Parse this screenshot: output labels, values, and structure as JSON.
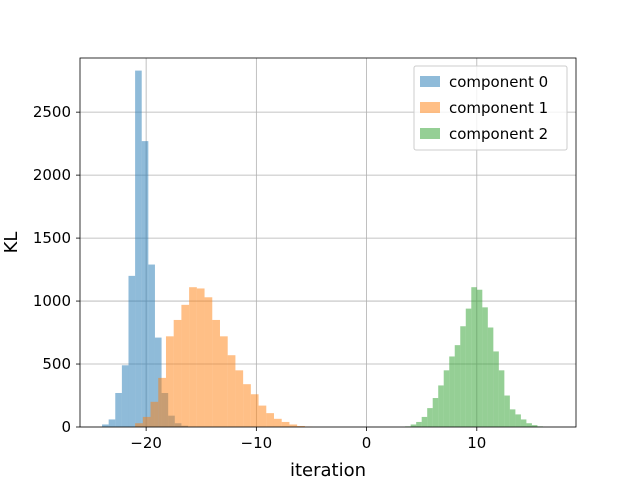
{
  "chart_data": {
    "type": "bar",
    "title": "",
    "xlabel": "iteration",
    "ylabel": "KL",
    "xlim": [
      -26,
      19
    ],
    "ylim": [
      0,
      2930
    ],
    "grid": true,
    "legend_position": "top-right",
    "x_ticks": [
      {
        "value": -20,
        "label": "−20"
      },
      {
        "value": -10,
        "label": "−10"
      },
      {
        "value": 0,
        "label": "0"
      },
      {
        "value": 10,
        "label": "10"
      }
    ],
    "y_ticks": [
      {
        "value": 0,
        "label": "0"
      },
      {
        "value": 500,
        "label": "500"
      },
      {
        "value": 1000,
        "label": "1000"
      },
      {
        "value": 1500,
        "label": "1500"
      },
      {
        "value": 2000,
        "label": "2000"
      },
      {
        "value": 2500,
        "label": "2500"
      }
    ],
    "series": [
      {
        "name": "component 0",
        "color": "#1f77b4",
        "opacity": 0.5,
        "bin_width": 0.6,
        "bin_starts": [
          -24.0,
          -23.4,
          -22.8,
          -22.2,
          -21.6,
          -21.0,
          -20.4,
          -19.8,
          -19.2,
          -18.6,
          -18.0,
          -17.4,
          -16.8
        ],
        "counts": [
          20,
          60,
          270,
          490,
          1200,
          2830,
          2270,
          1290,
          710,
          270,
          90,
          30,
          10
        ]
      },
      {
        "name": "component 1",
        "color": "#ff7f0e",
        "opacity": 0.5,
        "bin_width": 0.7,
        "bin_starts": [
          -21.0,
          -20.3,
          -19.6,
          -18.9,
          -18.2,
          -17.5,
          -16.8,
          -16.1,
          -15.4,
          -14.7,
          -14.0,
          -13.3,
          -12.6,
          -11.9,
          -11.2,
          -10.5,
          -9.8,
          -9.1,
          -8.4,
          -7.7,
          -7.0,
          -6.3,
          -5.6
        ],
        "counts": [
          30,
          80,
          200,
          390,
          720,
          850,
          970,
          1110,
          1100,
          1030,
          850,
          720,
          570,
          450,
          340,
          260,
          170,
          110,
          65,
          40,
          20,
          8,
          3
        ]
      },
      {
        "name": "component 2",
        "color": "#2ca02c",
        "opacity": 0.5,
        "bin_width": 0.5,
        "bin_starts": [
          3.5,
          4.0,
          4.5,
          5.0,
          5.5,
          6.0,
          6.5,
          7.0,
          7.5,
          8.0,
          8.5,
          9.0,
          9.5,
          10.0,
          10.5,
          11.0,
          11.5,
          12.0,
          12.5,
          13.0,
          13.5,
          14.0,
          14.5,
          15.0,
          15.5
        ],
        "counts": [
          5,
          20,
          40,
          80,
          150,
          230,
          330,
          450,
          560,
          650,
          800,
          940,
          1110,
          1090,
          950,
          790,
          600,
          450,
          250,
          140,
          100,
          60,
          30,
          15,
          5
        ]
      }
    ]
  }
}
